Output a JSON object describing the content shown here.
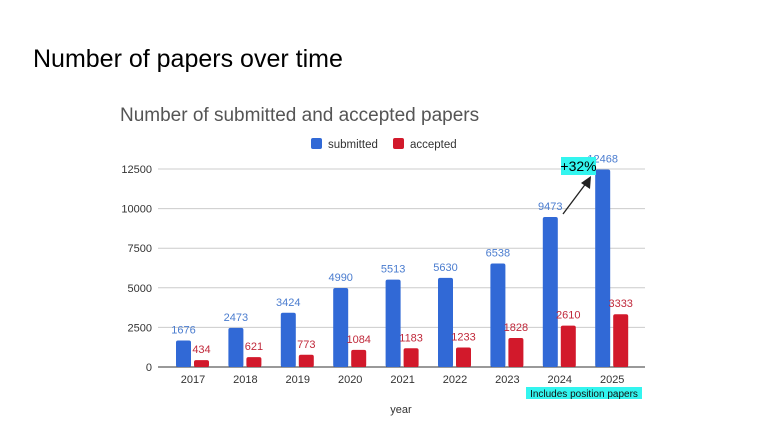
{
  "slide_title": "Number of papers over time",
  "chart_data": {
    "type": "bar",
    "title": "Number of submitted and accepted papers",
    "xlabel": "year",
    "ylabel": "",
    "categories": [
      "2017",
      "2018",
      "2019",
      "2020",
      "2021",
      "2022",
      "2023",
      "2024",
      "2025"
    ],
    "series": [
      {
        "name": "submitted",
        "color": "#3169d6",
        "label_color": "#4a7ccf",
        "values": [
          1676,
          2473,
          3424,
          4990,
          5513,
          5630,
          6538,
          9473,
          12468
        ]
      },
      {
        "name": "accepted",
        "color": "#d2192b",
        "label_color": "#c0283a",
        "values": [
          434,
          621,
          773,
          1084,
          1183,
          1233,
          1828,
          2610,
          3333
        ]
      }
    ],
    "ylim": [
      0,
      12500
    ],
    "yticks": [
      0,
      2500,
      5000,
      7500,
      10000,
      12500
    ],
    "grid": true,
    "legend": "top",
    "annotations": {
      "growth": "+32%",
      "note": "Includes position papers",
      "highlight_color": "#33f5ef"
    }
  }
}
